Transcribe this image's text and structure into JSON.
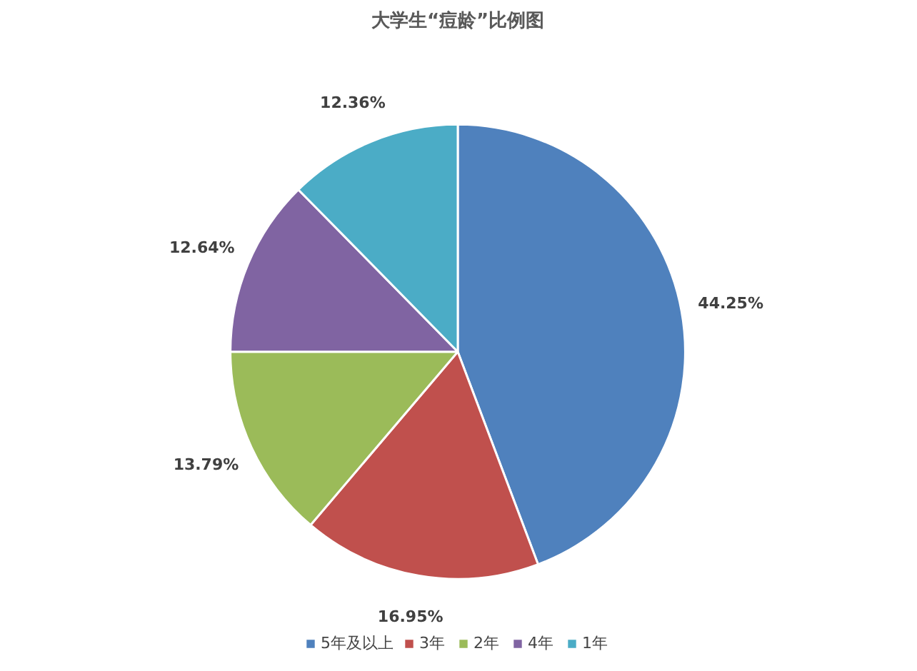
{
  "chart_data": {
    "type": "pie",
    "title": "大学生“痘龄”比例图",
    "categories": [
      "5年及以上",
      "3年",
      "2年",
      "4年",
      "1年"
    ],
    "values": [
      44.25,
      16.95,
      13.79,
      12.64,
      12.36
    ],
    "value_labels": [
      "44.25%",
      "16.95%",
      "13.79%",
      "12.64%",
      "12.36%"
    ],
    "colors": [
      "#4f81bd",
      "#c0504d",
      "#9bbb59",
      "#8064a2",
      "#4bacc6"
    ],
    "legend": "bottom"
  }
}
